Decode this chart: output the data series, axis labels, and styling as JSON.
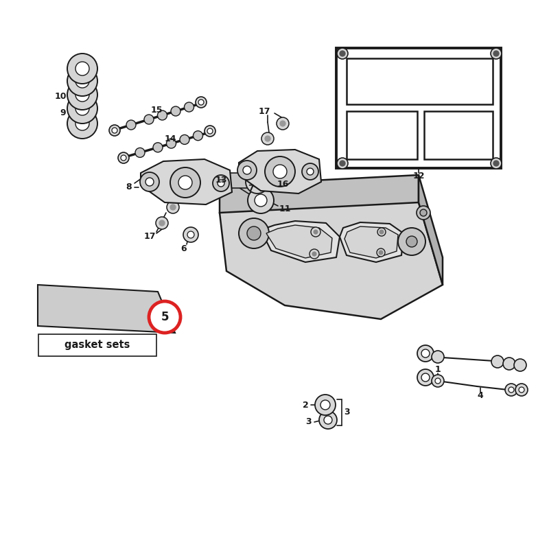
{
  "bg_color": "#ffffff",
  "line_color": "#1a1a1a",
  "red_circle_color": "#dd2222",
  "part5_label": "5",
  "gasket_label": "gasket sets",
  "fig_width": 8.0,
  "fig_height": 8.0
}
